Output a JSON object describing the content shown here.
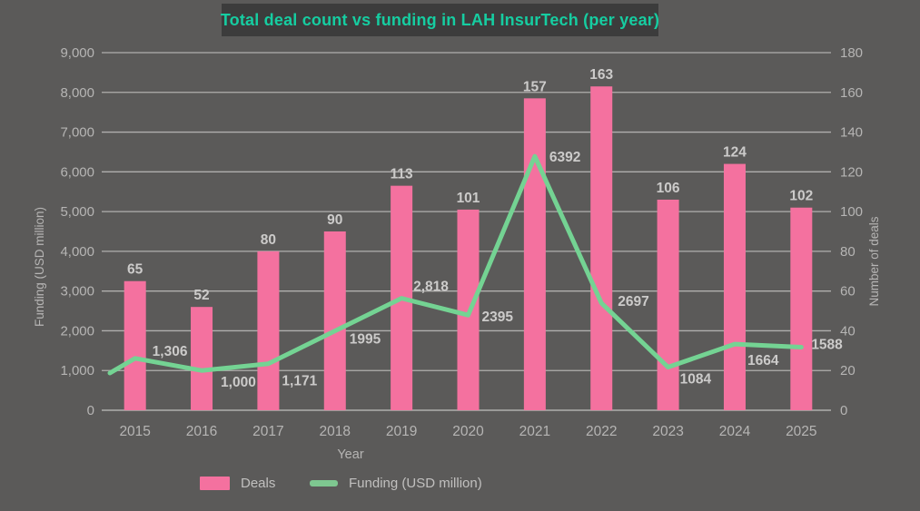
{
  "title": "Total deal count vs funding in LAH InsurTech (per year)",
  "colors": {
    "background": "#5b5a59",
    "title_box_bg": "#3c3c3c",
    "title_text": "#16cda1",
    "bar": "#f4719f",
    "line": "#74d393",
    "legend_line_swatch": "#7ec790",
    "gridline": "#b0afae",
    "axis_text": "#b6b5b4",
    "data_label": "#cccbca"
  },
  "chart_data": {
    "type": "bar",
    "subtype": "bar+line combo, dual y-axis",
    "title": "Total deal count vs funding in LAH InsurTech (per year)",
    "categories": [
      "2015",
      "2016",
      "2017",
      "2018",
      "2019",
      "2020",
      "2021",
      "2022",
      "2023",
      "2024",
      "2025"
    ],
    "series": [
      {
        "name": "Deals",
        "kind": "bar",
        "y_axis": "right",
        "values": [
          65,
          52,
          80,
          90,
          113,
          101,
          157,
          163,
          106,
          124,
          102
        ],
        "labels": [
          "65",
          "52",
          "80",
          "90",
          "113",
          "101",
          "157",
          "163",
          "106",
          "124",
          "102"
        ]
      },
      {
        "name": "Funding (USD million)",
        "kind": "line",
        "y_axis": "left",
        "values": [
          1306,
          1000,
          1171,
          1995,
          2818,
          2395,
          6392,
          2697,
          1084,
          1664,
          1588
        ],
        "labels": [
          "1,306",
          "1,000",
          "1,171",
          "1995",
          "2,818",
          "2395",
          "6392",
          "2697",
          "1084",
          "1664",
          "1588"
        ]
      }
    ],
    "xlabel": "Year",
    "left_axis": {
      "label": "Funding (USD million)",
      "range": [
        0,
        9000
      ],
      "ticks": [
        "9,000",
        "8,000",
        "7,000",
        "6,000",
        "5,000",
        "4,000",
        "3,000",
        "2,000",
        "1,000",
        "0"
      ]
    },
    "right_axis": {
      "label": "Number of deals",
      "range": [
        0,
        180
      ],
      "ticks": [
        "180",
        "160",
        "140",
        "120",
        "100",
        "80",
        "60",
        "40",
        "20",
        "0"
      ]
    },
    "grid": true,
    "legend_position": "bottom",
    "legend": [
      {
        "label": "Deals",
        "swatch": "bar"
      },
      {
        "label": "Funding (USD million)",
        "swatch": "line"
      }
    ]
  }
}
